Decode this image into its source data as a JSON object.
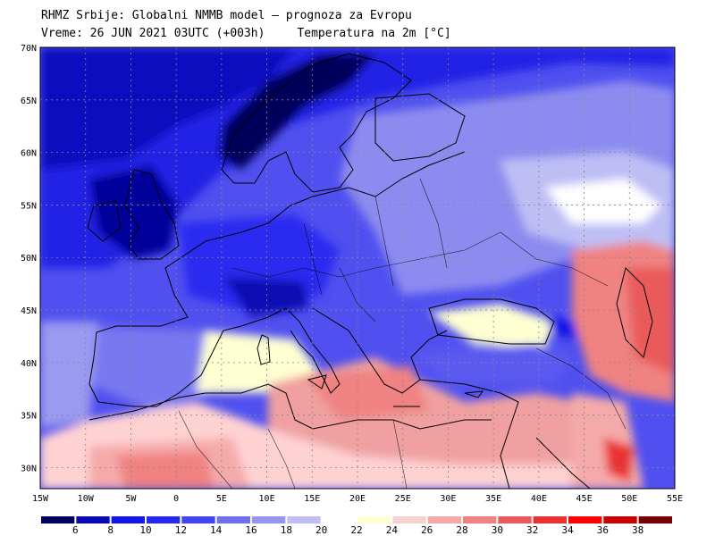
{
  "header": {
    "line1": "RHMZ Srbije: Globalni NMMB model — prognoza za Evropu",
    "line2_time": "Vreme: 26 JUN 2021 03UTC (+003h)",
    "line2_param": "Temperatura na 2m [°C]"
  },
  "axes": {
    "lon_labels": [
      "15W",
      "10W",
      "5W",
      "0",
      "5E",
      "10E",
      "15E",
      "20E",
      "25E",
      "30E",
      "35E",
      "40E",
      "45E",
      "50E",
      "55E"
    ],
    "lat_labels": [
      "70N",
      "65N",
      "60N",
      "55N",
      "50N",
      "45N",
      "40N",
      "35N",
      "30N"
    ]
  },
  "colorbar": {
    "labels": [
      "6",
      "8",
      "10",
      "12",
      "14",
      "16",
      "18",
      "20",
      "22",
      "24",
      "26",
      "28",
      "30",
      "32",
      "34",
      "36",
      "38"
    ],
    "colors": [
      "#00005a",
      "#0a0ab4",
      "#1414e6",
      "#2828f0",
      "#4646f0",
      "#6e6ef0",
      "#9696f0",
      "#bebef5",
      "#ffffff",
      "#ffffd2",
      "#f5d2d2",
      "#f5aaaa",
      "#f08282",
      "#eb5a5a",
      "#eb3232",
      "#ff0000",
      "#c80000",
      "#780000"
    ]
  },
  "map": {
    "lon_range": [
      -15,
      55
    ],
    "lat_range": [
      28,
      70
    ],
    "grid": true
  }
}
